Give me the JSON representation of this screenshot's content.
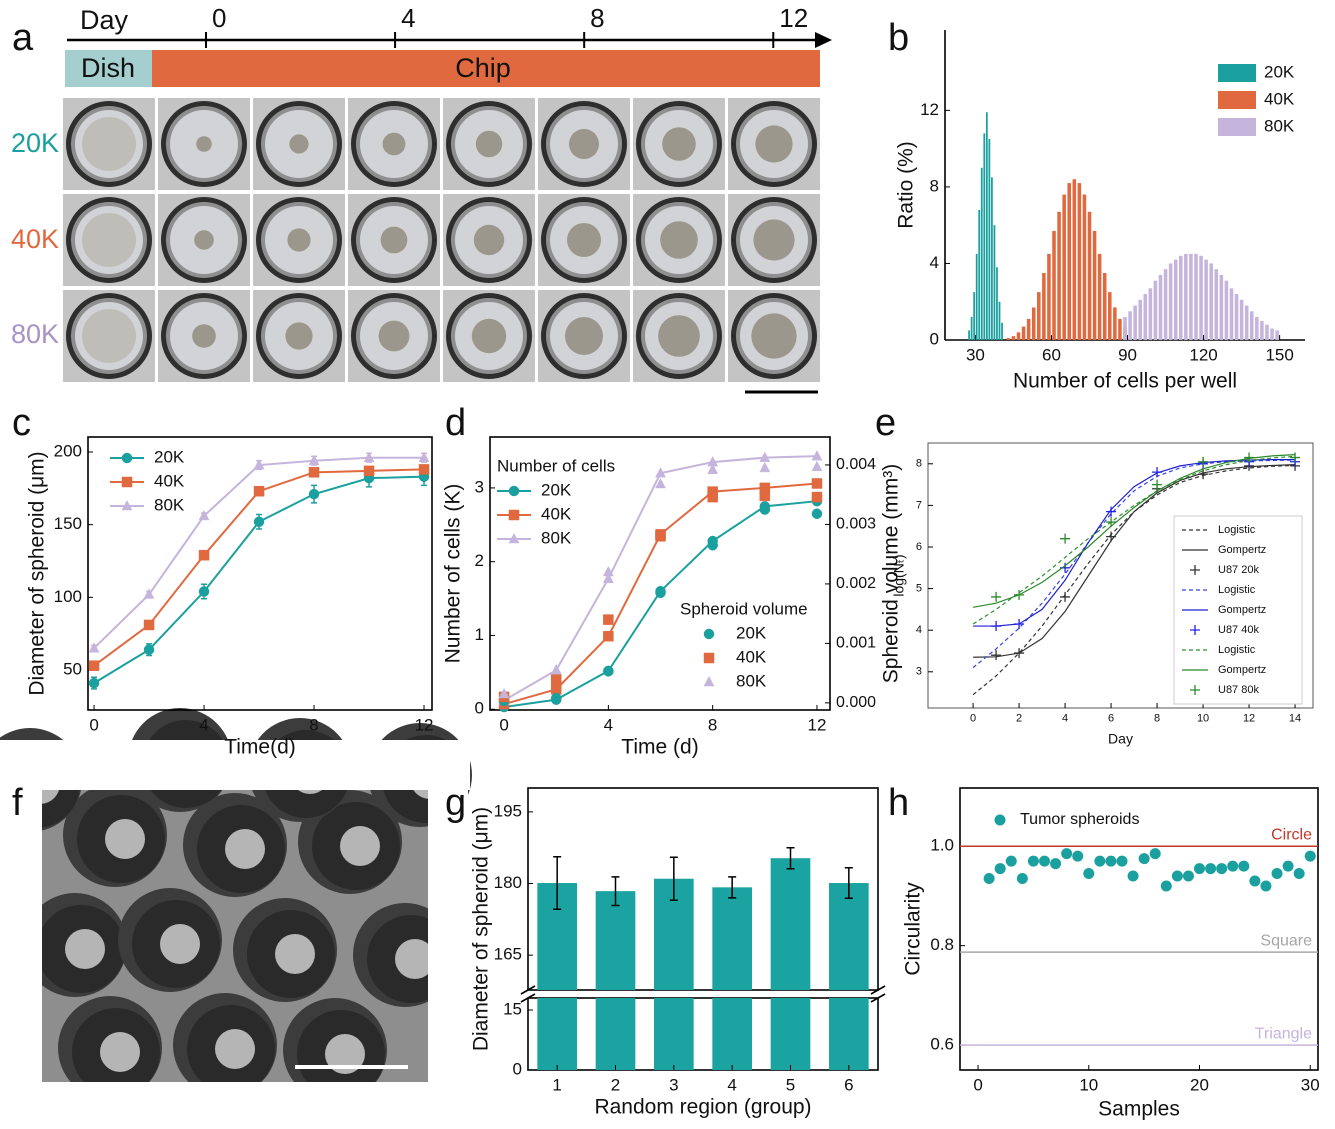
{
  "panel_labels": [
    "a",
    "b",
    "c",
    "d",
    "e",
    "f",
    "g",
    "h"
  ],
  "timeline": {
    "axis_label": "Day",
    "ticks": [
      0,
      4,
      8,
      12
    ],
    "xlim": [
      -2.94,
      13.2
    ],
    "stages": [
      "Dish",
      "Chip"
    ],
    "rows": [
      "20K",
      "40K",
      "80K"
    ]
  },
  "chart_data": [
    {
      "type": "histogram",
      "xlabel": "Number of cells per well",
      "ylabel": "Ratio (%)",
      "xlim": [
        18,
        160
      ],
      "ylim": [
        0,
        16.2
      ],
      "xticks": [
        30,
        60,
        90,
        120,
        150
      ],
      "yticks": [
        0,
        4,
        8,
        12
      ],
      "legend": "upper right",
      "series": [
        {
          "name": "20K",
          "color": "#1aa09e",
          "bins": [
            27,
            28,
            29,
            30,
            31,
            32,
            33,
            34,
            35,
            36,
            37,
            38,
            39,
            40,
            41
          ],
          "values": [
            0.5,
            1.2,
            2.5,
            4.5,
            6.8,
            9.0,
            10.8,
            11.9,
            10.5,
            8.5,
            6.0,
            3.8,
            2.0,
            0.9
          ]
        },
        {
          "name": "40K",
          "color": "#e0693f",
          "bins": [
            42,
            44,
            46,
            48,
            50,
            52,
            54,
            56,
            58,
            60,
            62,
            64,
            66,
            68,
            70,
            72,
            74,
            76,
            78,
            80,
            82,
            84,
            86,
            88,
            90
          ],
          "values": [
            0.1,
            0.2,
            0.4,
            0.7,
            1.1,
            1.7,
            2.5,
            3.5,
            4.5,
            5.7,
            6.7,
            7.6,
            8.2,
            8.4,
            8.2,
            7.6,
            6.7,
            5.7,
            4.5,
            3.5,
            2.5,
            1.7,
            1.1,
            0.7
          ]
        },
        {
          "name": "80K",
          "color": "#c5b4dc",
          "bins": [
            88,
            90,
            92,
            94,
            96,
            98,
            100,
            102,
            104,
            106,
            108,
            110,
            112,
            114,
            116,
            118,
            120,
            122,
            124,
            126,
            128,
            130,
            132,
            134,
            136,
            138,
            140,
            142,
            144,
            146,
            148,
            150
          ],
          "values": [
            1.2,
            1.5,
            1.8,
            2.1,
            2.4,
            2.7,
            3.1,
            3.4,
            3.7,
            4.0,
            4.2,
            4.4,
            4.5,
            4.5,
            4.5,
            4.4,
            4.2,
            4.0,
            3.7,
            3.4,
            3.1,
            2.7,
            2.4,
            2.1,
            1.8,
            1.5,
            1.2,
            1.0,
            0.8,
            0.6,
            0.5
          ]
        }
      ]
    },
    {
      "type": "line",
      "xlabel": "Time(d)",
      "ylabel": "Diameter of spheroid (μm)",
      "xlim": [
        -0.22,
        12.29
      ],
      "ylim": [
        22.5,
        210.3
      ],
      "xticks": [
        0,
        4,
        8,
        12
      ],
      "yticks": [
        50,
        100,
        150,
        200
      ],
      "legend": "upper left",
      "x": [
        0,
        2,
        4,
        6,
        8,
        10,
        12
      ],
      "series": [
        {
          "name": "20K",
          "color": "#1aa09e",
          "line": "solid",
          "marker": "circle",
          "values": [
            41,
            64,
            104,
            152,
            171,
            182,
            183
          ],
          "errors": [
            4,
            4,
            5,
            5,
            6,
            6,
            6
          ]
        },
        {
          "name": "40K",
          "color": "#e0693f",
          "line": "solid",
          "marker": "square",
          "values": [
            53,
            81,
            129,
            173,
            186,
            187,
            188
          ],
          "errors": [
            2,
            2,
            2,
            3,
            2,
            2,
            2
          ]
        },
        {
          "name": "80K",
          "color": "#c5b4dc",
          "line": "solid",
          "marker": "triangle",
          "values": [
            65,
            102,
            156,
            191,
            194,
            196,
            196
          ],
          "errors": [
            2,
            2,
            2,
            3,
            3,
            3,
            3
          ]
        }
      ]
    },
    {
      "type": "line",
      "xlabel": "Time (d)",
      "ylabel": "Number of cells (K)",
      "y2label": "Spheroid volume (mm³)",
      "xlim": [
        -0.54,
        12.5
      ],
      "ylim": [
        -0.01,
        3.69
      ],
      "y2lim": [
        -0.00012,
        0.00447
      ],
      "xticks": [
        0,
        4,
        8,
        12
      ],
      "yticks": [
        0,
        1,
        2,
        3
      ],
      "y2ticks": [
        {
          "value": 0,
          "label": "0.000"
        },
        0.001,
        0.002,
        0.003,
        0.004
      ],
      "legend": "upper left",
      "legend_titles": [
        "Number of cells",
        "Spheroid volume"
      ],
      "x": [
        0,
        2,
        4,
        6,
        8,
        10,
        12
      ],
      "series": [
        {
          "name": "20K",
          "color": "#1aa09e",
          "line": "solid",
          "marker": "circle",
          "values": [
            0.03,
            0.13,
            0.52,
            1.6,
            2.28,
            2.75,
            2.82
          ]
        },
        {
          "name": "40K",
          "color": "#e0693f",
          "line": "solid",
          "marker": "square",
          "values": [
            0.07,
            0.27,
            0.99,
            2.37,
            2.95,
            3.0,
            3.06
          ]
        },
        {
          "name": "80K",
          "color": "#c5b4dc",
          "line": "solid",
          "marker": "triangle",
          "values": [
            0.12,
            0.53,
            1.77,
            3.2,
            3.35,
            3.41,
            3.43
          ]
        },
        {
          "name": "20K",
          "color": "#1aa09e",
          "marker": "circle",
          "axis": "y2",
          "values": [
            3e-05,
            8e-05,
            0.00053,
            0.00185,
            0.00265,
            0.00325,
            0.00318
          ]
        },
        {
          "name": "40K",
          "color": "#e0693f",
          "marker": "square",
          "axis": "y2",
          "values": [
            0.0001,
            0.0004,
            0.0014,
            0.0028,
            0.00346,
            0.00348,
            0.00346
          ]
        },
        {
          "name": "80K",
          "color": "#c5b4dc",
          "marker": "triangle",
          "axis": "y2",
          "values": [
            0.00015,
            0.00055,
            0.0022,
            0.00368,
            0.00392,
            0.00395,
            0.00397
          ]
        }
      ]
    },
    {
      "type": "line",
      "xlabel": "Day",
      "ylabel": "log(Nₜ)",
      "xlim": [
        -1.96,
        14.78
      ],
      "ylim": [
        2.13,
        8.5
      ],
      "xticks": [
        0,
        2,
        4,
        6,
        8,
        10,
        12,
        14
      ],
      "yticks": [
        3,
        4,
        5,
        6,
        7,
        8
      ],
      "legend": "lower right",
      "series": [
        {
          "name": "Logistic",
          "color": "#333333",
          "line": "dashed",
          "x": [
            0,
            1,
            2,
            3,
            4,
            5,
            6,
            7,
            8,
            9,
            10,
            11,
            12,
            13,
            14
          ],
          "values": [
            2.45,
            2.9,
            3.45,
            4.1,
            4.85,
            5.6,
            6.3,
            6.85,
            7.25,
            7.55,
            7.72,
            7.83,
            7.9,
            7.94,
            7.96
          ]
        },
        {
          "name": "Gompertz",
          "color": "#333333",
          "line": "solid",
          "x": [
            0,
            1,
            2,
            3,
            4,
            5,
            6,
            7,
            8,
            9,
            10,
            11,
            12,
            13,
            14
          ],
          "values": [
            3.35,
            3.36,
            3.45,
            3.8,
            4.45,
            5.3,
            6.15,
            6.85,
            7.3,
            7.6,
            7.78,
            7.88,
            7.93,
            7.96,
            7.98
          ]
        },
        {
          "name": "U87 20k",
          "color": "#333333",
          "marker": "plus",
          "x": [
            1,
            2,
            4,
            6,
            8,
            10,
            12,
            14
          ],
          "values": [
            3.4,
            3.45,
            4.8,
            6.25,
            7.4,
            7.75,
            7.95,
            7.95
          ]
        },
        {
          "name": "Logistic",
          "color": "#3344dd",
          "line": "dashed",
          "x": [
            0,
            1,
            2,
            3,
            4,
            5,
            6,
            7,
            8,
            9,
            10,
            11,
            12,
            13,
            14
          ],
          "values": [
            3.1,
            3.55,
            4.05,
            4.65,
            5.35,
            6.1,
            6.8,
            7.35,
            7.7,
            7.9,
            8.0,
            8.05,
            8.07,
            8.08,
            8.09
          ]
        },
        {
          "name": "Gompertz",
          "color": "#2222cc",
          "line": "solid",
          "x": [
            0,
            1,
            2,
            3,
            4,
            5,
            6,
            7,
            8,
            9,
            10,
            11,
            12,
            13,
            14
          ],
          "values": [
            4.1,
            4.1,
            4.15,
            4.5,
            5.2,
            6.1,
            6.9,
            7.45,
            7.78,
            7.95,
            8.03,
            8.07,
            8.09,
            8.1,
            8.1
          ]
        },
        {
          "name": "U87 40k",
          "color": "#2222ee",
          "marker": "plus",
          "x": [
            1,
            2,
            4,
            6,
            8,
            10,
            12,
            14
          ],
          "values": [
            4.1,
            4.15,
            5.5,
            6.85,
            7.8,
            8.0,
            8.05,
            8.05
          ]
        },
        {
          "name": "Logistic",
          "color": "#2f8f2f",
          "line": "dashed",
          "x": [
            0,
            1,
            2,
            3,
            4,
            5,
            6,
            7,
            8,
            9,
            10,
            11,
            12,
            13,
            14
          ],
          "values": [
            4.15,
            4.5,
            4.9,
            5.3,
            5.75,
            6.2,
            6.6,
            7.0,
            7.35,
            7.62,
            7.83,
            7.98,
            8.08,
            8.14,
            8.18
          ]
        },
        {
          "name": "Gompertz",
          "color": "#2a8a2a",
          "line": "solid",
          "x": [
            0,
            1,
            2,
            3,
            4,
            5,
            6,
            7,
            8,
            9,
            10,
            11,
            12,
            13,
            14
          ],
          "values": [
            4.55,
            4.65,
            4.85,
            5.15,
            5.55,
            6.0,
            6.5,
            6.95,
            7.35,
            7.65,
            7.88,
            8.03,
            8.13,
            8.19,
            8.22
          ]
        },
        {
          "name": "U87 80k",
          "color": "#2a8a2a",
          "marker": "plus",
          "x": [
            1,
            2,
            4,
            6,
            8,
            10,
            12,
            14
          ],
          "values": [
            4.8,
            4.85,
            6.2,
            6.6,
            7.5,
            8.05,
            8.15,
            8.15
          ]
        }
      ]
    },
    {
      "type": "bar",
      "xlabel": "Random region (group)",
      "ylabel": "Diameter of spheroid (μm)",
      "categories": [
        "1",
        "2",
        "3",
        "4",
        "5",
        "6"
      ],
      "ylims": [
        [
          0,
          18
        ],
        [
          157.7,
          200
        ]
      ],
      "yticks": [
        0,
        15,
        165,
        180,
        195
      ],
      "color": "#1ba3a1",
      "values": [
        180.1,
        178.4,
        181,
        179.2,
        185.3,
        180.1
      ],
      "errors": [
        5.5,
        3,
        4.5,
        2.2,
        2.2,
        3.2
      ]
    },
    {
      "type": "scatter",
      "xlabel": "Samples",
      "ylabel": "Circularity",
      "xlim": [
        -1.63,
        30.7
      ],
      "ylim": [
        0.55,
        1.117
      ],
      "xticks": [
        0,
        10,
        20,
        30
      ],
      "yticks": [
        {
          "value": 1.0,
          "label": "1.0"
        },
        0.8,
        0.6
      ],
      "legend": "upper left",
      "series": [
        {
          "name": "Tumor spheroids",
          "color": "#1aa09e",
          "x": [
            1,
            2,
            3,
            4,
            5,
            6,
            7,
            8,
            9,
            10,
            11,
            12,
            13,
            14,
            15,
            16,
            17,
            18,
            19,
            20,
            21,
            22,
            23,
            24,
            25,
            26,
            27,
            28,
            29,
            30
          ],
          "values": [
            0.935,
            0.955,
            0.97,
            0.935,
            0.97,
            0.97,
            0.965,
            0.985,
            0.98,
            0.945,
            0.97,
            0.97,
            0.97,
            0.94,
            0.975,
            0.985,
            0.92,
            0.94,
            0.94,
            0.955,
            0.955,
            0.955,
            0.96,
            0.96,
            0.93,
            0.92,
            0.945,
            0.96,
            0.945,
            0.98
          ]
        }
      ],
      "reference_lines": [
        {
          "label": "Circle",
          "value": 1.0,
          "color": "#c0392b"
        },
        {
          "label": "Square",
          "value": 0.787,
          "color": "#a6a6a6"
        },
        {
          "label": "Triangle",
          "value": 0.6,
          "color": "#c5b4dc"
        }
      ]
    }
  ]
}
